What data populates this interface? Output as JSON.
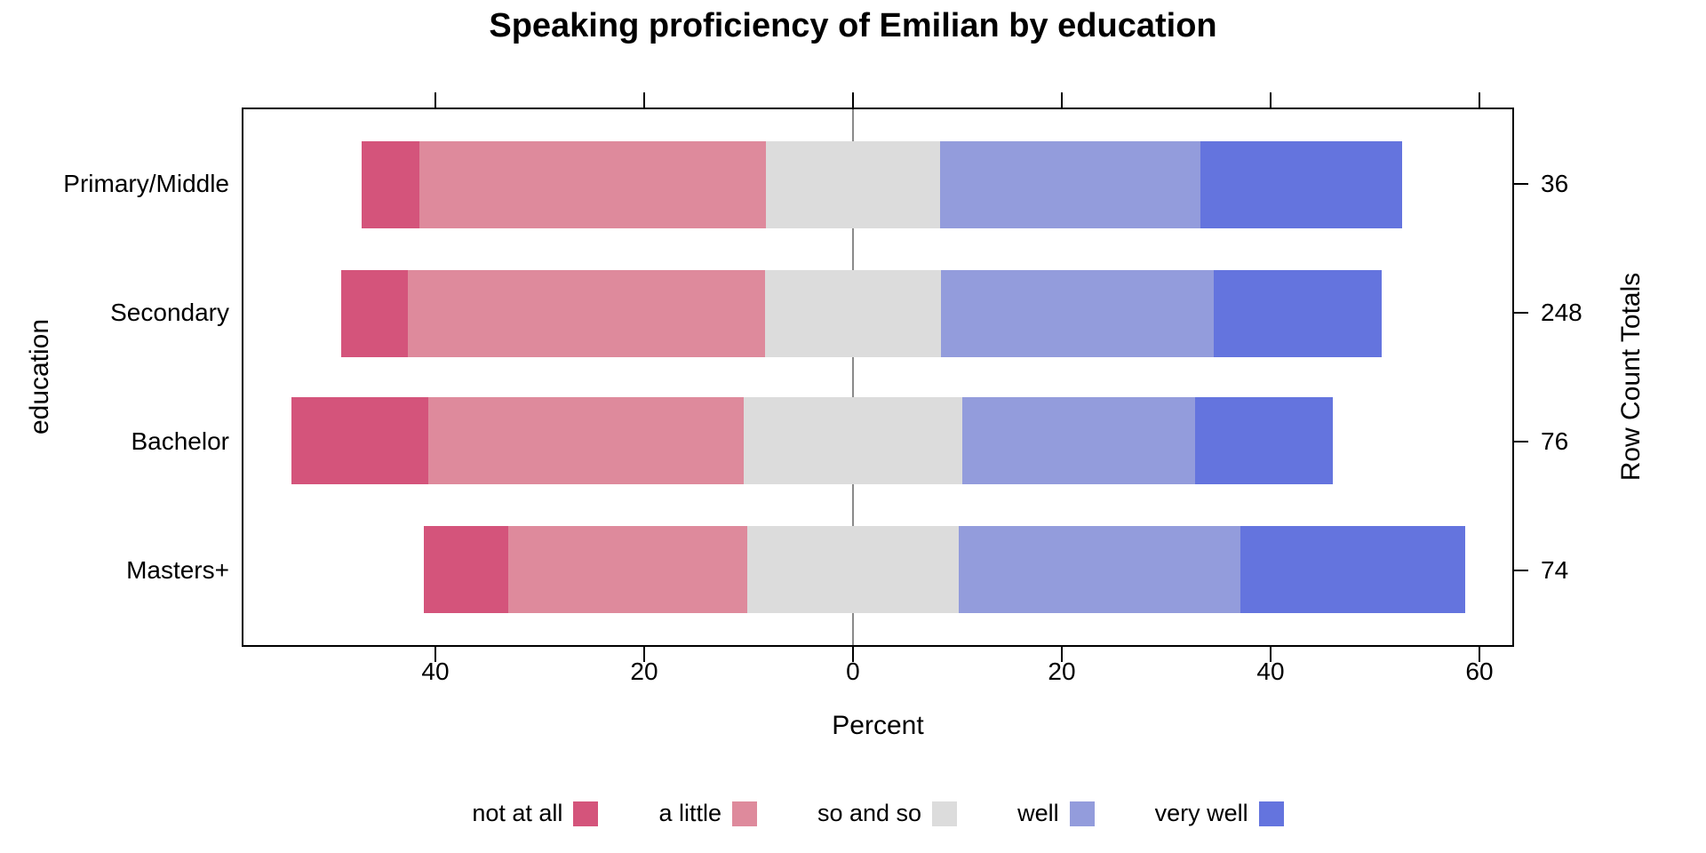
{
  "title": "Speaking proficiency of Emilian by education",
  "chart_data": {
    "type": "bar",
    "variant": "diverging-stacked-likert",
    "orientation": "horizontal",
    "title": "Speaking proficiency of Emilian by education",
    "xlabel": "Percent",
    "ylabel": "education",
    "ylabel_right": "Row Count Totals",
    "categories": [
      "Primary/Middle",
      "Secondary",
      "Bachelor",
      "Masters+"
    ],
    "row_totals": [
      "36",
      "248",
      "76",
      "74"
    ],
    "series": [
      {
        "name": "not at all",
        "color": "#D4547B",
        "values": [
          5.56,
          6.45,
          13.16,
          8.11
        ]
      },
      {
        "name": "a little",
        "color": "#DE8A9C",
        "values": [
          33.33,
          34.27,
          30.26,
          22.97
        ]
      },
      {
        "name": "so and so",
        "color": "#DCDCDC",
        "values": [
          16.67,
          16.94,
          21.05,
          20.27
        ]
      },
      {
        "name": "well",
        "color": "#939CDC",
        "values": [
          25.0,
          26.21,
          22.37,
          27.03
        ]
      },
      {
        "name": "very well",
        "color": "#6474DE",
        "values": [
          19.44,
          16.13,
          13.16,
          21.62
        ]
      }
    ],
    "centering": "each bar centered so the midpoint of 'so and so' sits at 0",
    "x_axis": {
      "range": [
        -58.55,
        63.32
      ],
      "ticks": [
        -40,
        -20,
        0,
        20,
        40,
        60
      ],
      "tick_labels": [
        "40",
        "20",
        "0",
        "20",
        "40",
        "60"
      ]
    },
    "reference_line": {
      "x": 0,
      "color": "#8a8a8a"
    },
    "grid": "off",
    "legend_position": "bottom"
  },
  "legend_note": "legend items show label text followed by color swatch"
}
